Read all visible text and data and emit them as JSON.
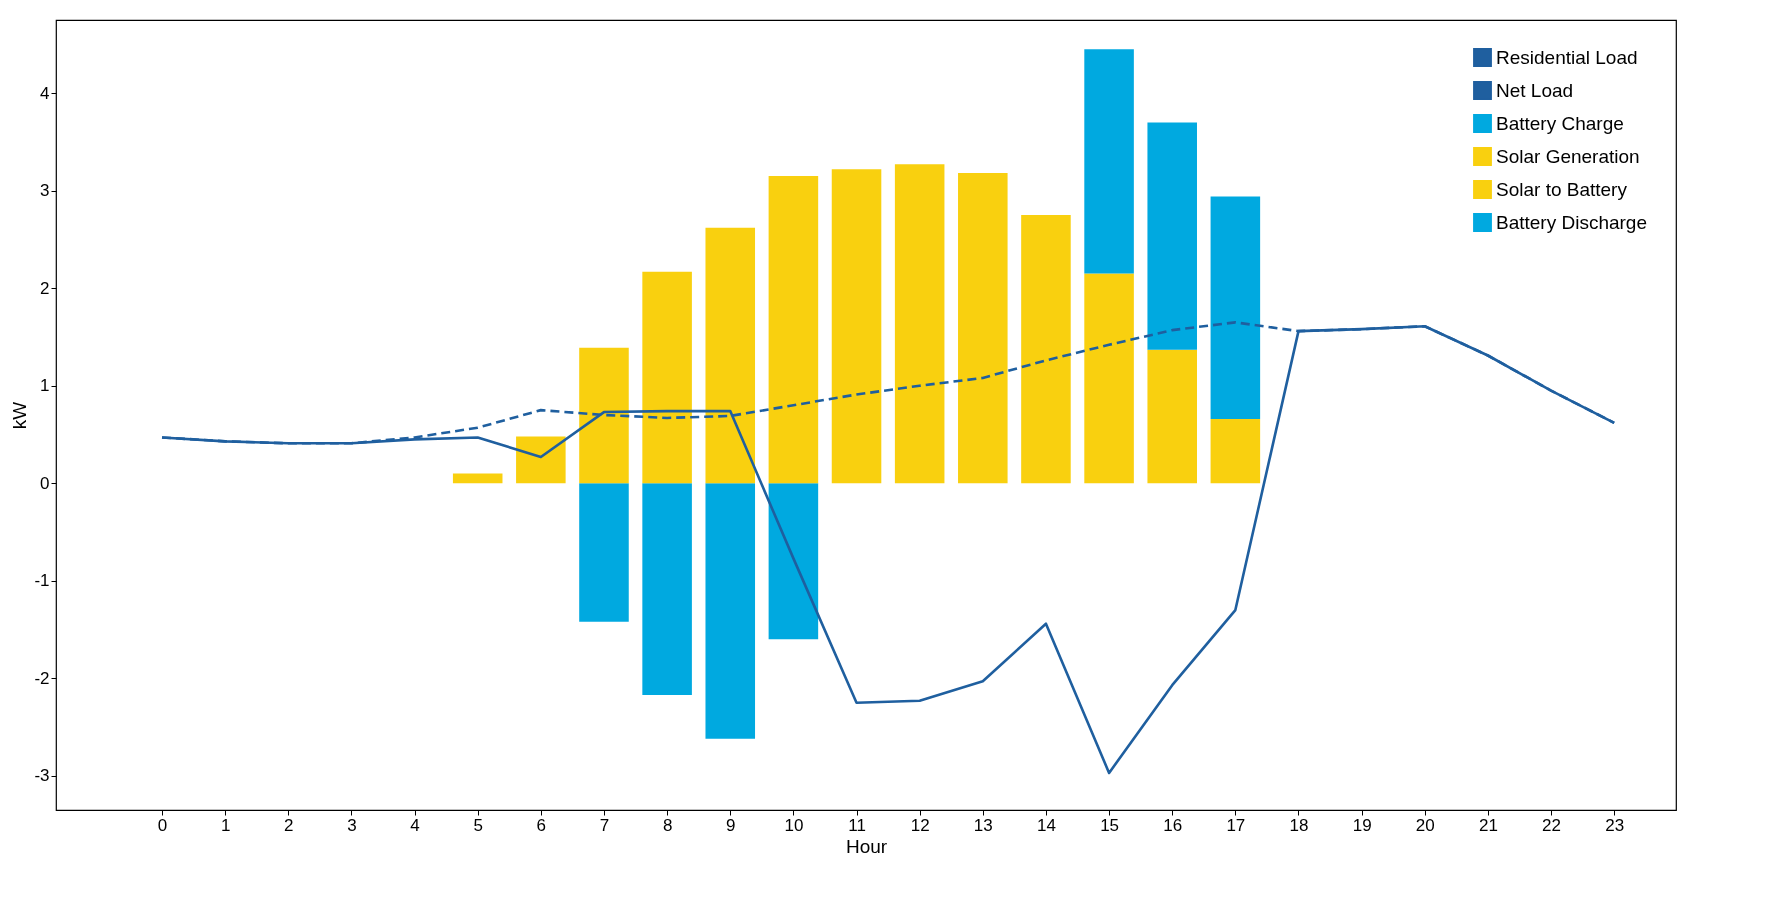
{
  "chart_data": {
    "type": "bar",
    "xlabel": "Hour",
    "ylabel": "kW",
    "stacked": true,
    "grid": false,
    "legend": "top right",
    "x": [
      0,
      1,
      2,
      3,
      4,
      5,
      6,
      7,
      8,
      9,
      10,
      11,
      12,
      13,
      14,
      15,
      16,
      17,
      18,
      19,
      20,
      21,
      22,
      23
    ],
    "xlim": [
      -1.6,
      23.9
    ],
    "xticks": [
      0,
      1,
      2,
      3,
      4,
      5,
      6,
      7,
      8,
      9,
      10,
      11,
      12,
      13,
      14,
      15,
      16,
      17,
      18,
      19,
      20,
      21,
      22,
      23
    ],
    "ylim": [
      -3.35,
      4.75
    ],
    "yticks": [
      -3,
      -2,
      -1,
      0,
      1,
      2,
      3,
      4
    ],
    "series": [
      {
        "name": "Residential Load",
        "type": "line",
        "line_style": "dashed",
        "color": "#1f5f9f",
        "values": [
          0.47,
          0.43,
          0.41,
          0.41,
          0.47,
          0.57,
          0.75,
          0.7,
          0.67,
          0.69,
          0.8,
          0.91,
          1.0,
          1.08,
          1.26,
          1.42,
          1.57,
          1.65,
          1.56,
          1.58,
          1.61,
          1.31,
          0.95,
          0.62
        ]
      },
      {
        "name": "Net Load",
        "type": "line",
        "line_style": "solid",
        "color": "#1f5f9f",
        "values": [
          0.47,
          0.43,
          0.41,
          0.41,
          0.45,
          0.47,
          0.27,
          0.73,
          0.74,
          0.74,
          -0.77,
          -2.25,
          -2.23,
          -2.03,
          -1.44,
          -2.97,
          -2.07,
          -1.3,
          1.56,
          1.58,
          1.61,
          1.31,
          0.95,
          0.62
        ]
      },
      {
        "name": "Battery Charge",
        "color": "#00a9e0",
        "values": [
          null,
          null,
          null,
          null,
          null,
          null,
          null,
          -1.42,
          -2.17,
          -2.62,
          -1.6,
          null,
          null,
          null,
          null,
          null,
          null,
          null,
          null,
          null,
          null,
          null,
          null,
          null
        ]
      },
      {
        "name": "Solar Generation",
        "color": "#f9d00f",
        "values": [
          null,
          null,
          null,
          null,
          null,
          0.1,
          0.48,
          null,
          null,
          null,
          1.56,
          3.22,
          3.27,
          3.18,
          2.75,
          2.15,
          1.37,
          0.66,
          null,
          null,
          null,
          null,
          null,
          null
        ]
      },
      {
        "name": "Solar to Battery",
        "color": "#f9d00f",
        "values": [
          null,
          null,
          null,
          null,
          null,
          null,
          null,
          1.39,
          2.17,
          2.62,
          1.59,
          null,
          null,
          null,
          null,
          null,
          null,
          null,
          null,
          null,
          null,
          null,
          null,
          null
        ]
      },
      {
        "name": "Battery Discharge",
        "color": "#00a9e0",
        "values": [
          null,
          null,
          null,
          null,
          null,
          null,
          null,
          null,
          null,
          null,
          null,
          null,
          null,
          null,
          null,
          2.3,
          2.33,
          2.28,
          null,
          null,
          null,
          null,
          null,
          null
        ]
      }
    ]
  }
}
